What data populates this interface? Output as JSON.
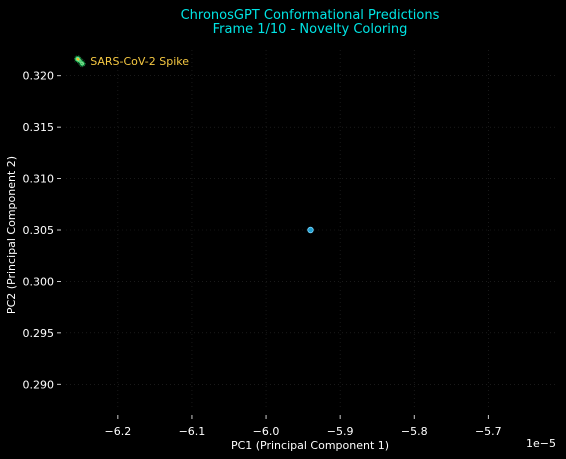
{
  "chart_data": {
    "type": "scatter",
    "title": "ChronosGPT Conformational Predictions",
    "subtitle": "Frame 1/10 - Novelty Coloring",
    "xlabel": "PC1 (Principal Component 1)",
    "ylabel": "PC2 (Principal Component 2)",
    "x_offset_label": "1e−5",
    "x_scale": 1e-05,
    "xlim": [
      -6.27,
      -5.61
    ],
    "ylim": [
      0.2875,
      0.3225
    ],
    "x_ticks": [
      -6.2,
      -6.1,
      -6.0,
      -5.9,
      -5.8,
      -5.7
    ],
    "x_tick_labels": [
      "−6.2",
      "−6.1",
      "−6.0",
      "−5.9",
      "−5.8",
      "−5.7"
    ],
    "y_ticks": [
      0.29,
      0.295,
      0.3,
      0.305,
      0.31,
      0.315,
      0.32
    ],
    "y_tick_labels": [
      "0.290",
      "0.295",
      "0.300",
      "0.305",
      "0.310",
      "0.315",
      "0.320"
    ],
    "grid": true,
    "points": [
      {
        "x": -5.94,
        "y": 0.305
      }
    ],
    "annotation": "🦠 SARS-CoV-2 Spike",
    "colors": {
      "background": "#000000",
      "title": "#00e5e5",
      "axis_text": "#ffffff",
      "grid": "#2a2a2a",
      "point_fill": "#1f9fd0",
      "point_edge": "#7fd8ff",
      "annotation": "#f5c842"
    }
  }
}
